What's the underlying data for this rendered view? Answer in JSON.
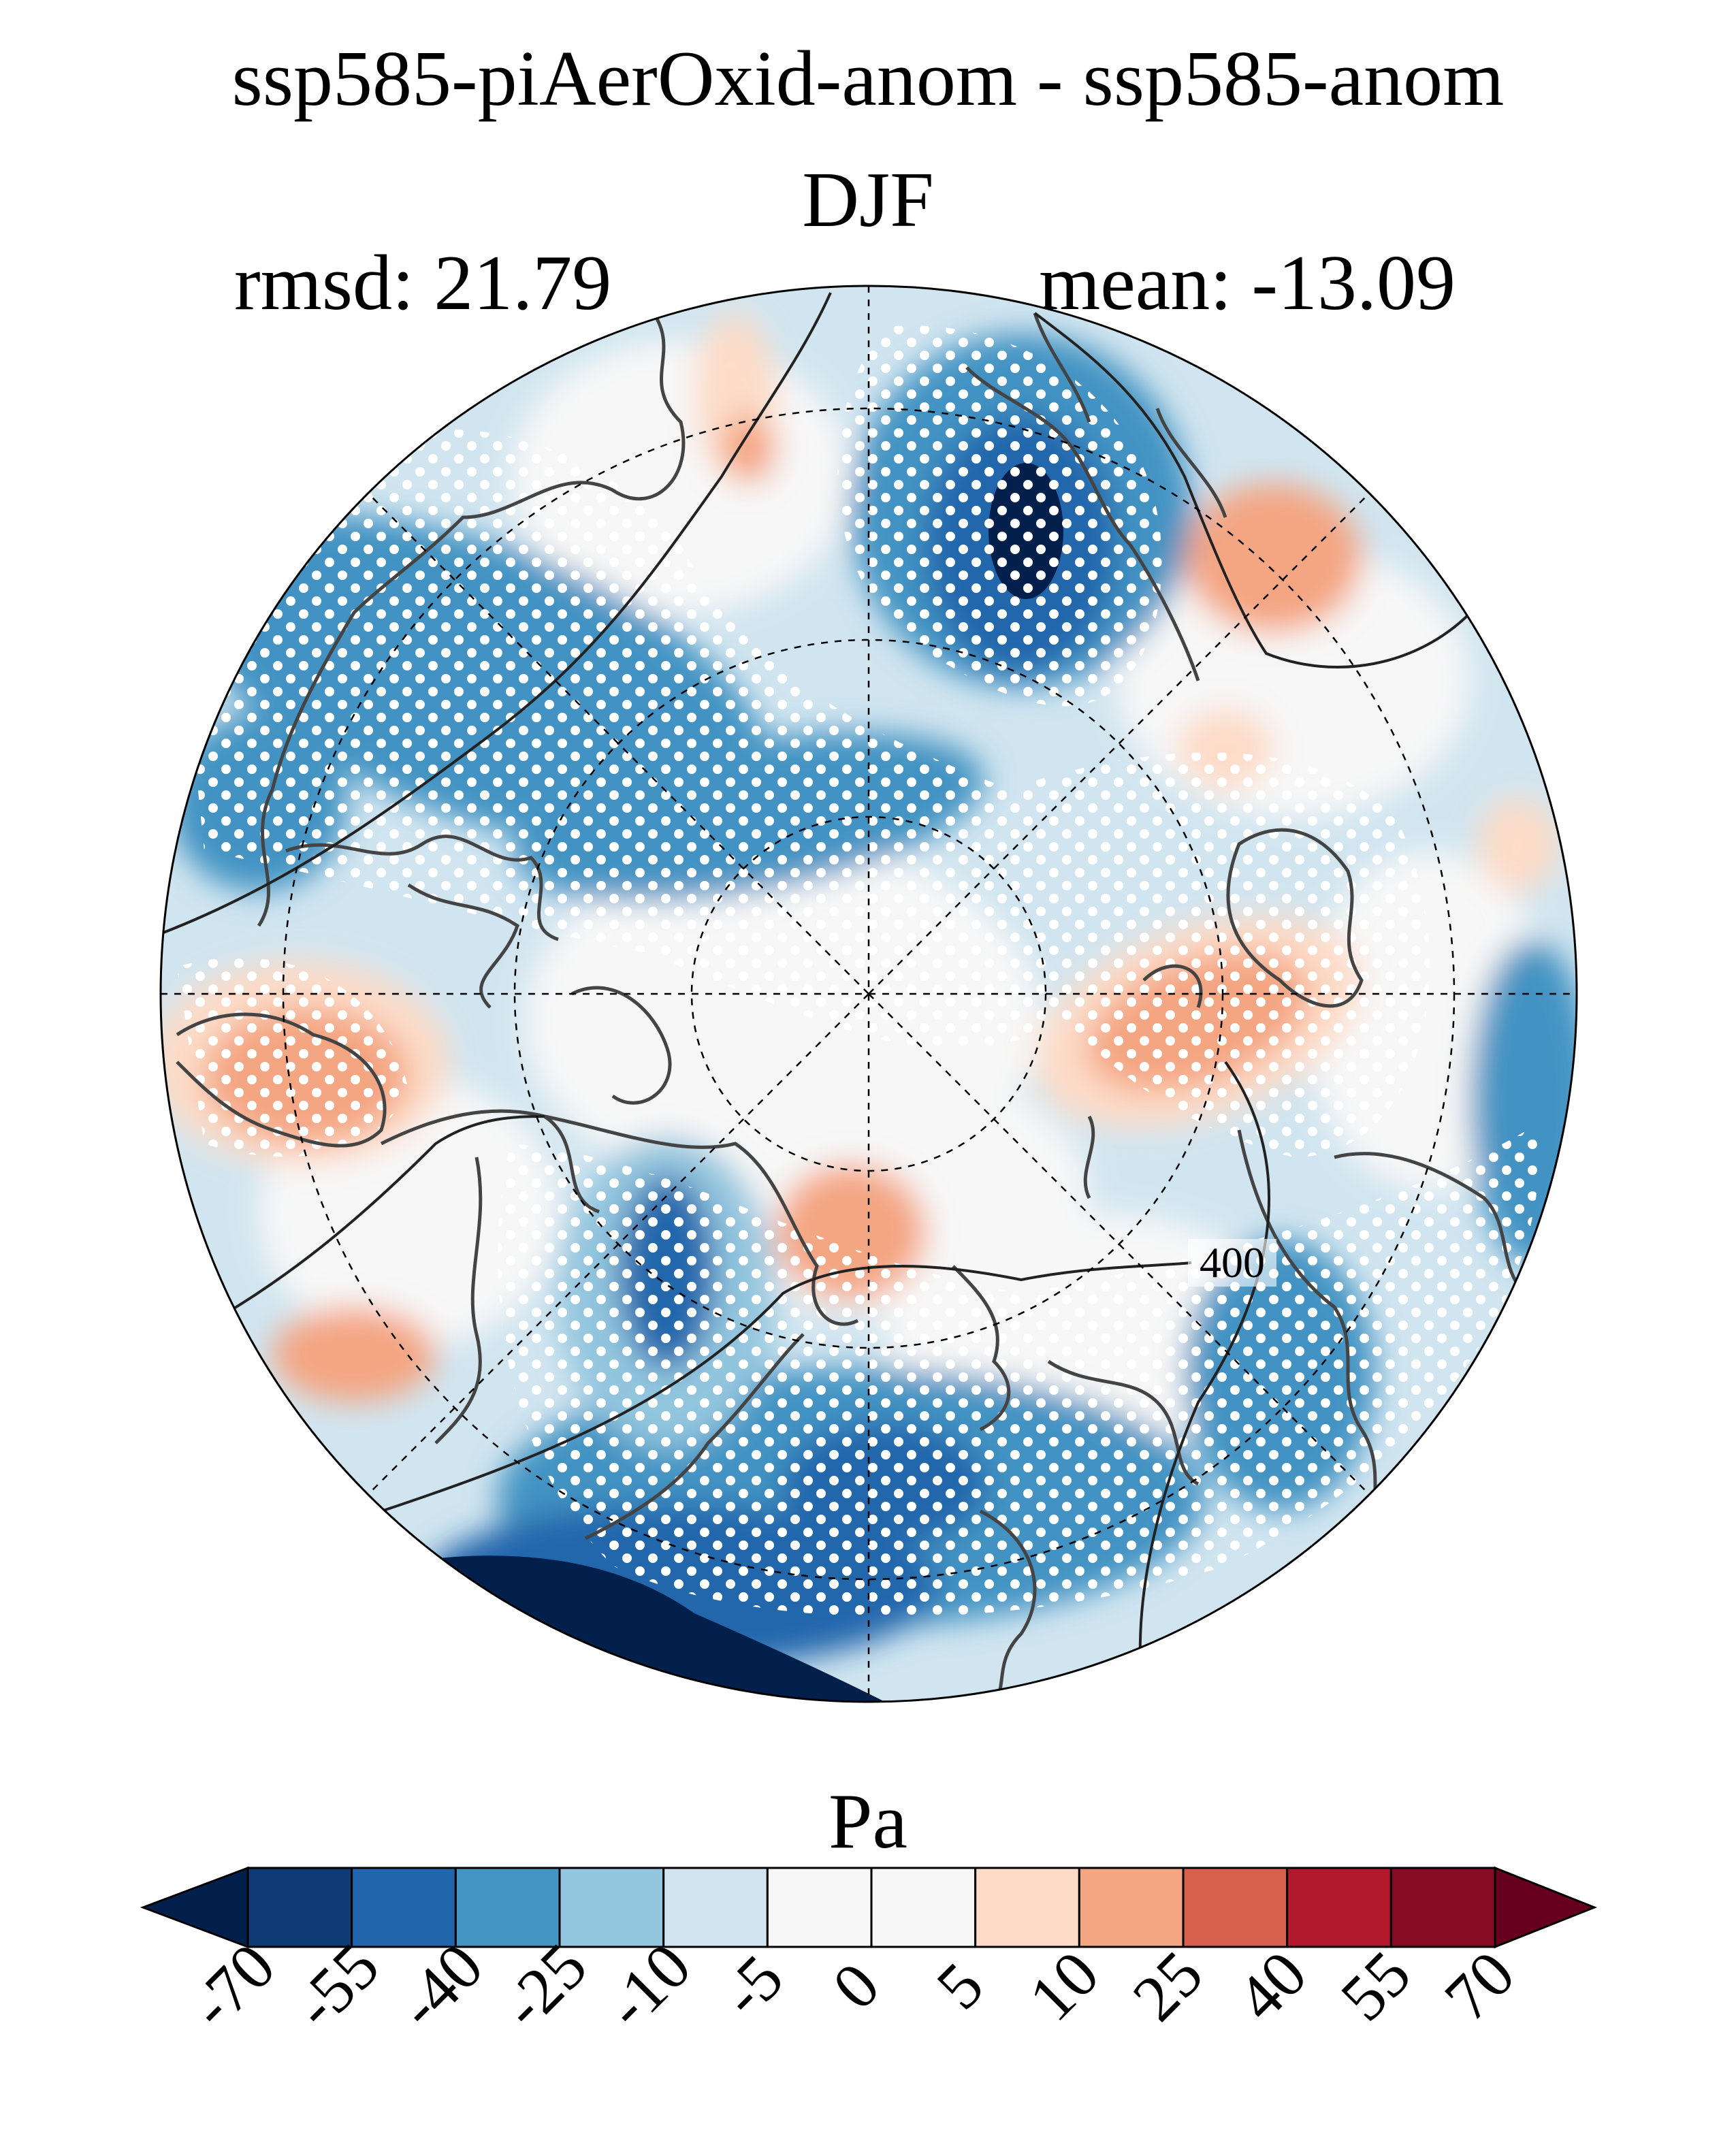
{
  "title": "ssp585-piAerOxid-anom - ssp585-anom",
  "season": "DJF",
  "stats": {
    "rmsd": "rmsd: 21.79",
    "mean": "mean: -13.09"
  },
  "contour_label": "400",
  "units": "Pa",
  "colorbar": {
    "ticks": [
      "-70",
      "-55",
      "-40",
      "-25",
      "-10",
      "-5",
      "0",
      "5",
      "10",
      "25",
      "40",
      "55",
      "70"
    ],
    "colors": [
      "#02204b",
      "#0d3a72",
      "#2166ac",
      "#4393c3",
      "#92c5de",
      "#d1e5f0",
      "#f7f7f7",
      "#f7f7f7",
      "#fddbc7",
      "#f4a582",
      "#d6604d",
      "#b2182b",
      "#860b24",
      "#67001f"
    ]
  },
  "map": {
    "projection": "north-polar-stereographic",
    "stippling": "white dots",
    "dominant_pattern": "mostly negative (blue) with positive (red) patches"
  }
}
